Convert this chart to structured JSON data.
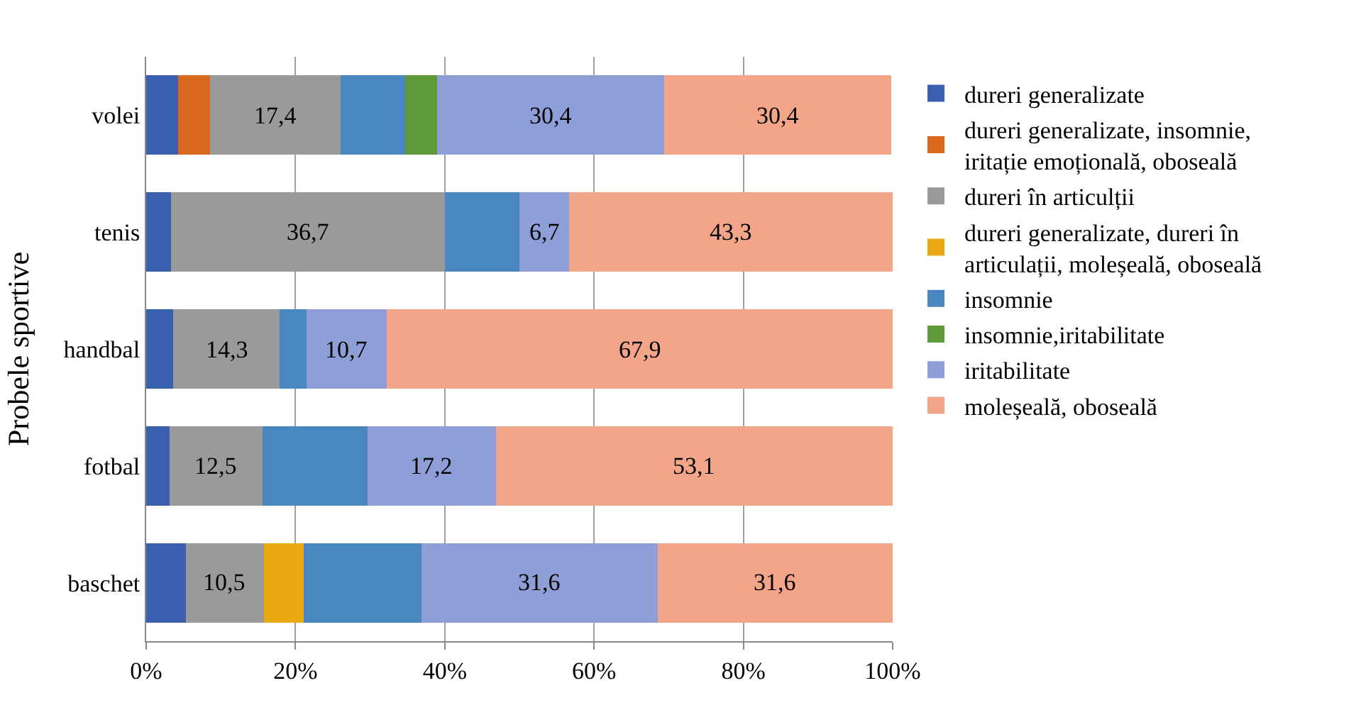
{
  "chart_data": {
    "type": "bar",
    "orientation": "horizontal",
    "stacked": true,
    "ylabel": "Probele sportive",
    "categories": [
      "volei",
      "tenis",
      "handbal",
      "fotbal",
      "baschet"
    ],
    "xlim": [
      0,
      100
    ],
    "xticks": [
      {
        "value": 0,
        "label": "0%"
      },
      {
        "value": 20,
        "label": "20%"
      },
      {
        "value": 40,
        "label": "40%"
      },
      {
        "value": 60,
        "label": "60%"
      },
      {
        "value": 80,
        "label": "80%"
      },
      {
        "value": 100,
        "label": "100%"
      }
    ],
    "grid": "x",
    "legend": "right",
    "series": [
      {
        "name": "dureri generalizate",
        "color": "#3a5fb0",
        "values": [
          4.3,
          3.3,
          3.6,
          3.1,
          5.3
        ],
        "value_labels": [
          null,
          null,
          null,
          null,
          null
        ]
      },
      {
        "name": "dureri generalizate, insomnie, iritație emoțională, oboseală",
        "color": "#d9691f",
        "values": [
          4.3,
          null,
          null,
          null,
          null
        ],
        "value_labels": [
          null,
          null,
          null,
          null,
          null
        ]
      },
      {
        "name": "dureri în articulții",
        "color": "#9a9a9a",
        "values": [
          17.4,
          36.7,
          14.3,
          12.5,
          10.5
        ],
        "value_labels": [
          "17,4",
          "36,7",
          "14,3",
          "12,5",
          "10,5"
        ]
      },
      {
        "name": "dureri generalizate, dureri în articulații, moleșeală, oboseală",
        "color": "#e8a913",
        "values": [
          null,
          null,
          null,
          null,
          5.3
        ],
        "value_labels": [
          null,
          null,
          null,
          null,
          null
        ]
      },
      {
        "name": "insomnie",
        "color": "#4a86c0",
        "values": [
          8.7,
          10.0,
          3.6,
          14.1,
          15.8
        ],
        "value_labels": [
          null,
          null,
          null,
          null,
          null
        ]
      },
      {
        "name": "insomnie,iritabilitate",
        "color": "#5e9a3a",
        "values": [
          4.3,
          null,
          null,
          null,
          null
        ],
        "value_labels": [
          null,
          null,
          null,
          null,
          null
        ]
      },
      {
        "name": "iritabilitate",
        "color": "#8d9fd6",
        "values": [
          30.4,
          6.7,
          10.7,
          17.2,
          31.6
        ],
        "value_labels": [
          "30,4",
          "6,7",
          "10,7",
          "17,2",
          "31,6"
        ]
      },
      {
        "name": "moleșeală, oboseală",
        "color": "#f2a588",
        "values": [
          30.4,
          43.3,
          67.9,
          53.1,
          31.6
        ],
        "value_labels": [
          "30,4",
          "43,3",
          "67,9",
          "53,1",
          "31,6"
        ]
      }
    ]
  }
}
